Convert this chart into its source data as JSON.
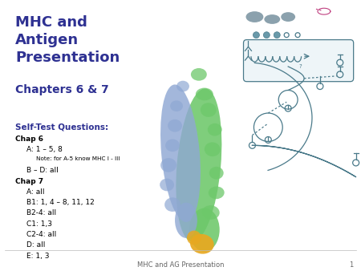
{
  "background_color": "#ffffff",
  "title_text": "MHC and\nAntigen\nPresentation",
  "title_color": "#2E3192",
  "title_fontsize": 13,
  "title_weight": "bold",
  "subtitle_text": "Chapters 6 & 7",
  "subtitle_color": "#2E3192",
  "subtitle_fontsize": 10,
  "subtitle_weight": "bold",
  "selftest_label": "Self-Test Questions:",
  "selftest_color": "#2E3192",
  "selftest_fontsize": 7.5,
  "selftest_weight": "bold",
  "body_lines": [
    {
      "text": "Chap 6",
      "indent": 0,
      "bold": true,
      "size": 6.5
    },
    {
      "text": "A: 1 – 5, 8",
      "indent": 1,
      "bold": false,
      "size": 6.5
    },
    {
      "text": "Note: for A-5 know MHC I - III",
      "indent": 2,
      "bold": false,
      "size": 5.2
    },
    {
      "text": "B – D: all",
      "indent": 1,
      "bold": false,
      "size": 6.5
    },
    {
      "text": "Chap 7",
      "indent": 0,
      "bold": true,
      "size": 6.5
    },
    {
      "text": "A: all",
      "indent": 1,
      "bold": false,
      "size": 6.5
    },
    {
      "text": "B1: 1, 4 – 8, 11, 12",
      "indent": 1,
      "bold": false,
      "size": 6.5
    },
    {
      "text": "B2-4: all",
      "indent": 1,
      "bold": false,
      "size": 6.5
    },
    {
      "text": "C1: 1,3",
      "indent": 1,
      "bold": false,
      "size": 6.5
    },
    {
      "text": "C2-4: all",
      "indent": 1,
      "bold": false,
      "size": 6.5
    },
    {
      "text": "D: all",
      "indent": 1,
      "bold": false,
      "size": 6.5
    },
    {
      "text": "E: 1, 3",
      "indent": 1,
      "bold": false,
      "size": 6.5
    }
  ],
  "footer_text": "MHC and AG Presentation",
  "footer_number": "1",
  "footer_color": "#666666",
  "footer_fontsize": 6,
  "text_color_body": "#000000",
  "green_color": "#6DC86A",
  "blue_color": "#8FA8D3",
  "gold_color": "#E8A820",
  "diag_color": "#4A7A8A"
}
